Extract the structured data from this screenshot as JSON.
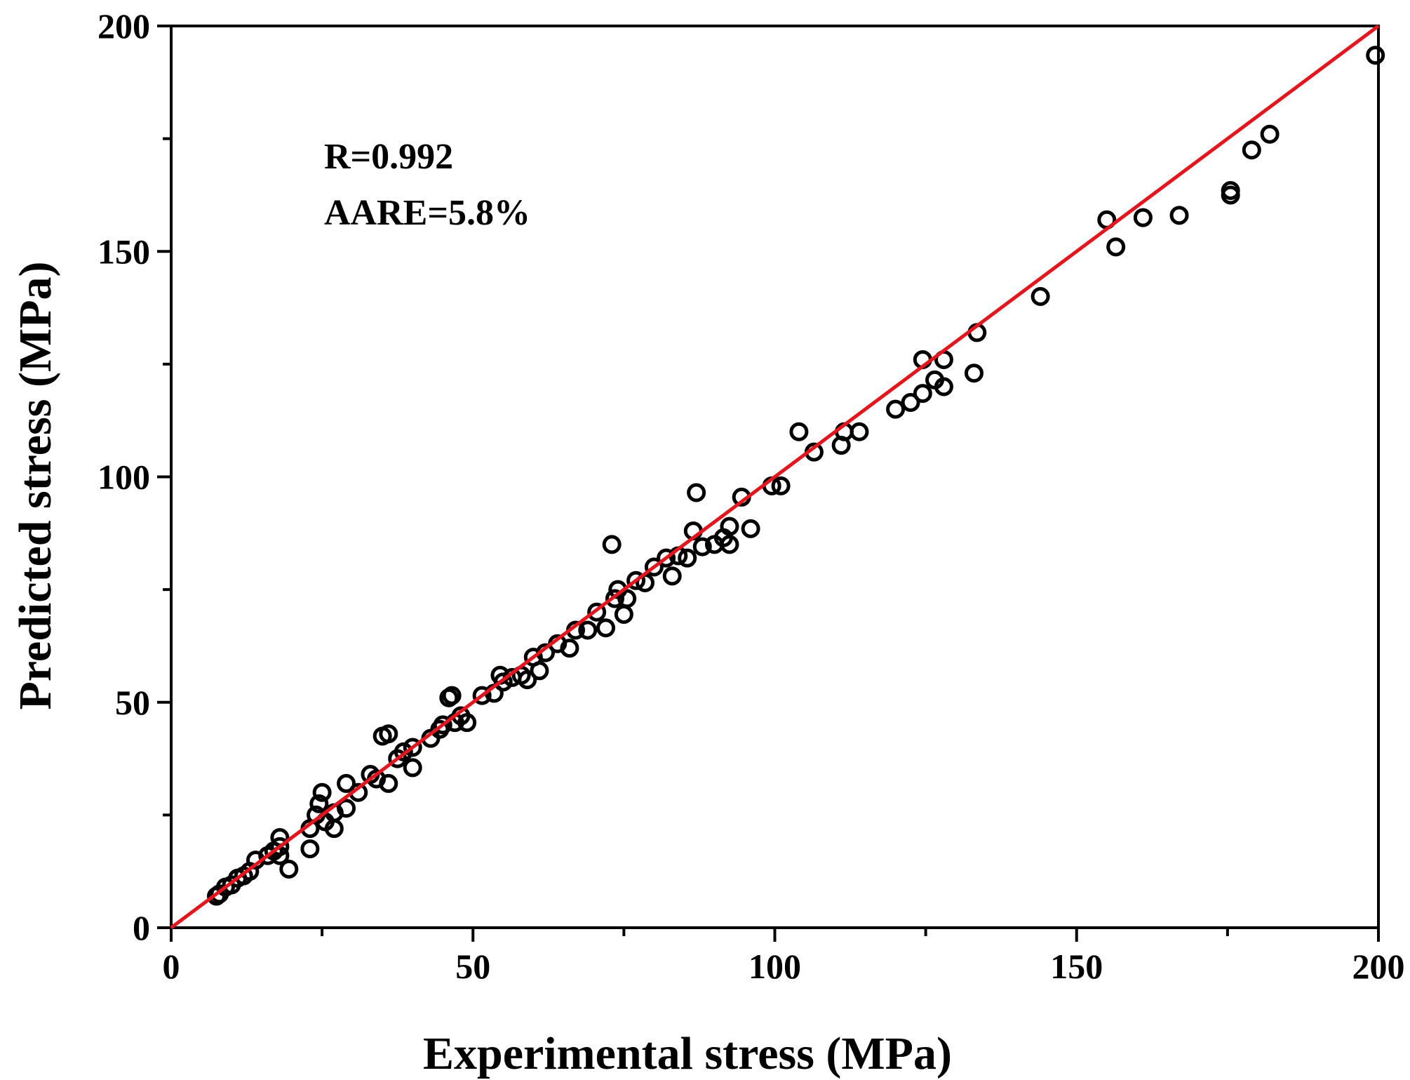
{
  "chart_data": {
    "type": "scatter",
    "title": "",
    "xlabel": "Experimental stress (MPa)",
    "ylabel": "Predicted stress (MPa)",
    "xlim": [
      0,
      200
    ],
    "ylim": [
      0,
      200
    ],
    "xticks": [
      "0",
      "50",
      "100",
      "150",
      "200"
    ],
    "yticks": [
      "0",
      "50",
      "100",
      "150",
      "200"
    ],
    "grid": false,
    "annotations": [
      "R=0.992",
      "AARE=5.8%"
    ],
    "fit_line": {
      "name": "y = x",
      "color": "#e8141c",
      "x": [
        0,
        200
      ],
      "y": [
        0,
        200
      ]
    },
    "series": [
      {
        "name": "data",
        "marker": "open-circle",
        "color": "#000000",
        "points": [
          [
            7.5,
            7
          ],
          [
            8,
            7.5
          ],
          [
            9,
            9
          ],
          [
            10,
            9.5
          ],
          [
            11,
            11
          ],
          [
            12,
            11.5
          ],
          [
            13,
            12.5
          ],
          [
            14,
            15
          ],
          [
            16,
            16
          ],
          [
            17,
            17
          ],
          [
            18,
            18
          ],
          [
            18,
            20
          ],
          [
            18,
            16
          ],
          [
            19.5,
            13
          ],
          [
            23,
            22
          ],
          [
            23,
            17.5
          ],
          [
            24,
            25
          ],
          [
            24.5,
            27.5
          ],
          [
            25,
            30
          ],
          [
            25.5,
            23.5
          ],
          [
            27,
            22
          ],
          [
            27,
            25.5
          ],
          [
            29,
            26.5
          ],
          [
            29,
            32
          ],
          [
            31,
            30
          ],
          [
            33,
            34
          ],
          [
            34,
            33
          ],
          [
            35,
            42.5
          ],
          [
            36,
            43
          ],
          [
            36,
            32
          ],
          [
            37.5,
            37.5
          ],
          [
            38.5,
            39
          ],
          [
            40,
            40
          ],
          [
            40,
            35.5
          ],
          [
            43,
            42
          ],
          [
            44.5,
            44
          ],
          [
            45,
            45
          ],
          [
            46,
            51
          ],
          [
            46.5,
            51.5
          ],
          [
            47,
            45.5
          ],
          [
            48,
            47
          ],
          [
            49,
            45.5
          ],
          [
            51.5,
            51.5
          ],
          [
            53.5,
            52
          ],
          [
            54.5,
            56
          ],
          [
            55,
            54.5
          ],
          [
            56.5,
            55.5
          ],
          [
            58,
            56
          ],
          [
            59,
            55
          ],
          [
            60,
            60
          ],
          [
            61,
            57
          ],
          [
            62,
            61
          ],
          [
            64,
            63
          ],
          [
            66,
            62
          ],
          [
            67,
            66
          ],
          [
            69,
            66
          ],
          [
            70.5,
            70
          ],
          [
            72,
            66.5
          ],
          [
            73,
            85
          ],
          [
            73.5,
            73
          ],
          [
            74,
            75
          ],
          [
            75,
            69.5
          ],
          [
            75.5,
            73
          ],
          [
            77,
            77
          ],
          [
            78.5,
            76.5
          ],
          [
            80,
            80
          ],
          [
            82,
            82
          ],
          [
            83,
            78
          ],
          [
            84,
            82.5
          ],
          [
            85.5,
            82
          ],
          [
            86.5,
            88
          ],
          [
            87,
            96.5
          ],
          [
            88,
            84.5
          ],
          [
            90,
            85
          ],
          [
            91.5,
            86.5
          ],
          [
            92.5,
            85
          ],
          [
            92.5,
            89
          ],
          [
            94.5,
            95.5
          ],
          [
            96,
            88.5
          ],
          [
            99.5,
            98
          ],
          [
            101,
            98
          ],
          [
            104,
            110
          ],
          [
            106.5,
            105.5
          ],
          [
            111,
            107
          ],
          [
            111.5,
            110
          ],
          [
            114,
            110
          ],
          [
            120,
            115
          ],
          [
            122.5,
            116.5
          ],
          [
            124.5,
            126
          ],
          [
            124.5,
            118.5
          ],
          [
            126.5,
            121.5
          ],
          [
            128,
            126
          ],
          [
            128,
            120
          ],
          [
            133,
            123
          ],
          [
            133.5,
            132
          ],
          [
            144,
            140
          ],
          [
            155,
            157
          ],
          [
            156.5,
            151
          ],
          [
            161,
            157.5
          ],
          [
            167,
            158
          ],
          [
            175.5,
            163.5
          ],
          [
            175.5,
            162.5
          ],
          [
            179,
            172.5
          ],
          [
            182,
            176
          ],
          [
            199.5,
            193.5
          ]
        ]
      }
    ]
  }
}
